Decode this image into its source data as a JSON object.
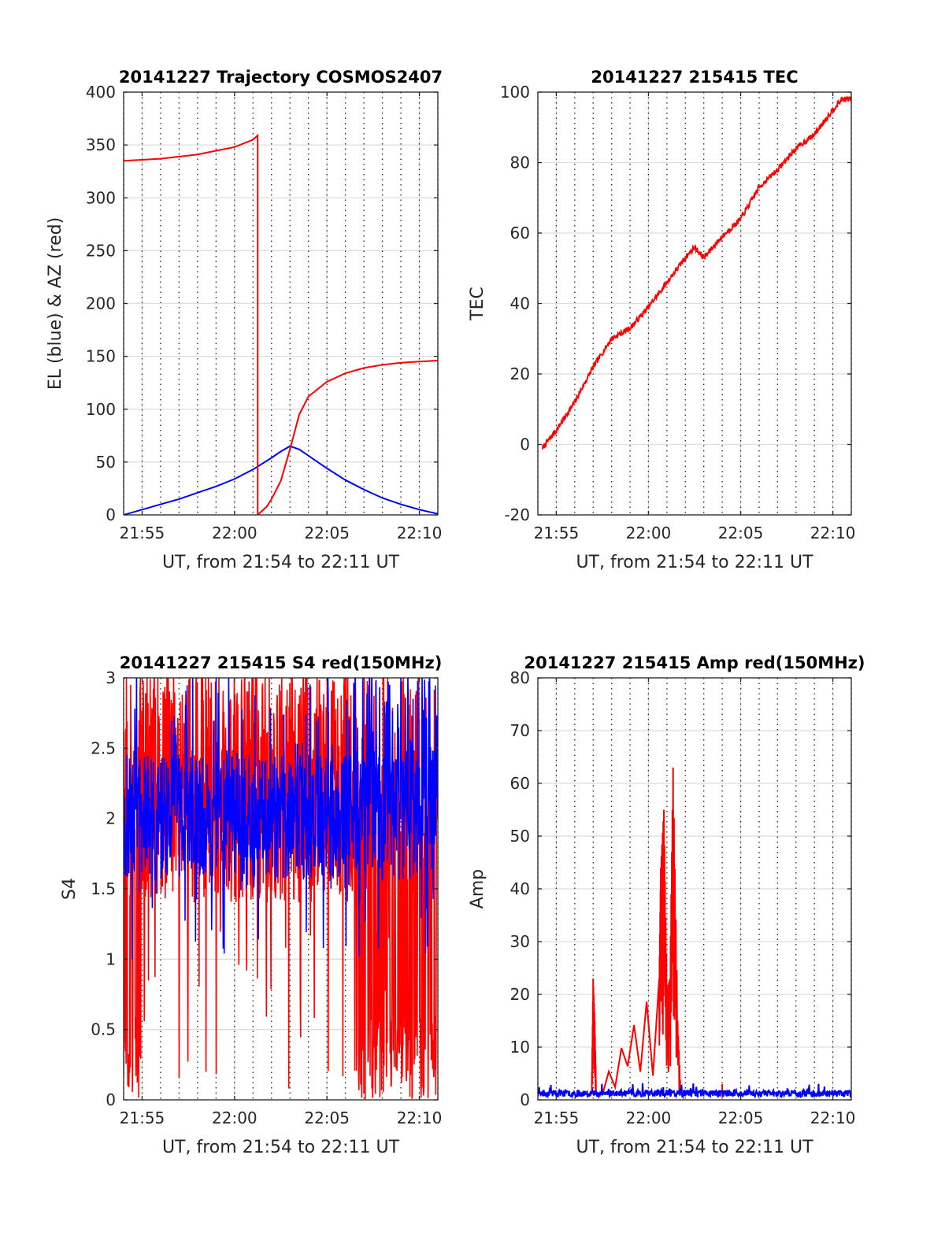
{
  "chart_data": [
    {
      "id": "trajectory",
      "type": "line",
      "title": "20141227 Trajectory COSMOS2407",
      "xlabel": "UT, from 21:54 to 22:11 UT",
      "ylabel": "EL (blue) & AZ (red)",
      "xlim": [
        "21:54",
        "22:11"
      ],
      "ylim": [
        0,
        400
      ],
      "xticks": [
        "21:55",
        "22:00",
        "22:05",
        "22:10"
      ],
      "yticks": [
        0,
        50,
        100,
        150,
        200,
        250,
        300,
        350,
        400
      ],
      "grid": true,
      "series": [
        {
          "key": "EL",
          "color": "#0000ff",
          "x": [
            "21:54",
            "21:55",
            "21:56",
            "21:57",
            "21:58",
            "21:59",
            "22:00",
            "22:01",
            "22:02",
            "22:02:30",
            "22:03",
            "22:03:30",
            "22:04",
            "22:05",
            "22:06",
            "22:07",
            "22:08",
            "22:09",
            "22:10",
            "22:11"
          ],
          "y": [
            0,
            5,
            10,
            15,
            21,
            27,
            34,
            43,
            54,
            60,
            65,
            62,
            56,
            44,
            33,
            24,
            16,
            10,
            5,
            1
          ]
        },
        {
          "key": "AZ",
          "color": "#ff0000",
          "x": [
            "21:54",
            "21:56",
            "21:58",
            "22:00",
            "22:01",
            "22:01:15",
            "22:01:15",
            "22:01:45",
            "22:02",
            "22:02:30",
            "22:03",
            "22:03:30",
            "22:04",
            "22:05",
            "22:06",
            "22:07",
            "22:08",
            "22:09",
            "22:10",
            "22:11"
          ],
          "y": [
            335,
            337,
            341,
            348,
            355,
            359,
            0,
            8,
            15,
            32,
            62,
            95,
            112,
            126,
            134,
            139,
            142,
            144,
            145,
            146
          ]
        }
      ]
    },
    {
      "id": "tec",
      "type": "line",
      "title": "20141227 215415 TEC",
      "xlabel": "UT, from 21:54 to 22:11 UT",
      "ylabel": "TEC",
      "xlim": [
        "21:54",
        "22:11"
      ],
      "ylim": [
        -20,
        100
      ],
      "xticks": [
        "21:55",
        "22:00",
        "22:05",
        "22:10"
      ],
      "yticks": [
        -20,
        0,
        20,
        40,
        60,
        80,
        100
      ],
      "grid": true,
      "series": [
        {
          "key": "TEC",
          "color": "#ff0000",
          "x": [
            "21:54:15",
            "21:55",
            "21:56",
            "21:57",
            "21:57:30",
            "21:58",
            "21:59",
            "22:00",
            "22:01",
            "22:02",
            "22:02:30",
            "22:03",
            "22:04",
            "22:05",
            "22:06",
            "22:07",
            "22:08",
            "22:09",
            "22:10",
            "22:10:30",
            "22:11"
          ],
          "y": [
            -1,
            4,
            12,
            22,
            26,
            30,
            33,
            39,
            46,
            53,
            56,
            53,
            59,
            64,
            73,
            78,
            84,
            88,
            95,
            98,
            98
          ]
        }
      ]
    },
    {
      "id": "s4",
      "type": "line",
      "title": "20141227 215415 S4 red(150MHz)",
      "xlabel": "UT, from 21:54 to 22:11 UT",
      "ylabel": "S4",
      "xlim": [
        "21:54",
        "22:11"
      ],
      "ylim": [
        0,
        3
      ],
      "xticks": [
        "21:55",
        "22:00",
        "22:05",
        "22:10"
      ],
      "yticks": [
        0,
        0.5,
        1,
        1.5,
        2,
        2.5,
        3
      ],
      "grid": true,
      "series": [
        {
          "key": "S4 red",
          "color": "#ff0000",
          "x": [
            "21:54",
            "22:11"
          ],
          "y": [
            0,
            3
          ]
        },
        {
          "key": "S4 blue",
          "color": "#0000ff",
          "x": [
            "21:54",
            "22:11"
          ],
          "y": [
            1,
            3
          ]
        }
      ]
    },
    {
      "id": "amp",
      "type": "line",
      "title": "20141227 215415 Amp red(150MHz)",
      "xlabel": "UT, from 21:54 to 22:11 UT",
      "ylabel": "Amp",
      "xlim": [
        "21:54",
        "22:11"
      ],
      "ylim": [
        0,
        80
      ],
      "xticks": [
        "21:55",
        "22:00",
        "22:05",
        "22:10"
      ],
      "yticks": [
        0,
        10,
        20,
        30,
        40,
        50,
        60,
        70,
        80
      ],
      "grid": true,
      "series": [
        {
          "key": "Amp red",
          "color": "#ff0000",
          "x": [
            "21:56:55",
            "21:57:00",
            "21:57:05",
            "21:57:10",
            "22:00:35",
            "22:00:40",
            "22:00:50",
            "22:01:00",
            "22:01:10",
            "22:01:20",
            "22:01:35",
            "22:01:45"
          ],
          "y": [
            1,
            23,
            15,
            1,
            23,
            44,
            55,
            21,
            23,
            63,
            15,
            1
          ]
        },
        {
          "key": "Amp blue",
          "color": "#0000ff",
          "x": [
            "21:54",
            "22:11"
          ],
          "y": [
            1,
            1
          ]
        }
      ]
    }
  ]
}
